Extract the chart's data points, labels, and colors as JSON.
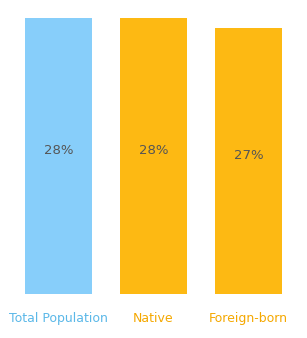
{
  "categories": [
    "Total Population",
    "Native",
    "Foreign-born"
  ],
  "values": [
    28,
    28,
    27
  ],
  "bar_colors": [
    "#87CEFA",
    "#FDB913",
    "#FDB913"
  ],
  "label_colors": [
    "#5BB8E8",
    "#F5A800",
    "#F5A800"
  ],
  "bar_width": 0.7,
  "ylim": [
    0,
    29.5
  ],
  "label_fontsize": 9,
  "pct_fontsize": 9.5,
  "background_color": "#ffffff",
  "pct_color": "#555555",
  "figsize": [
    3.07,
    3.38
  ],
  "dpi": 100
}
